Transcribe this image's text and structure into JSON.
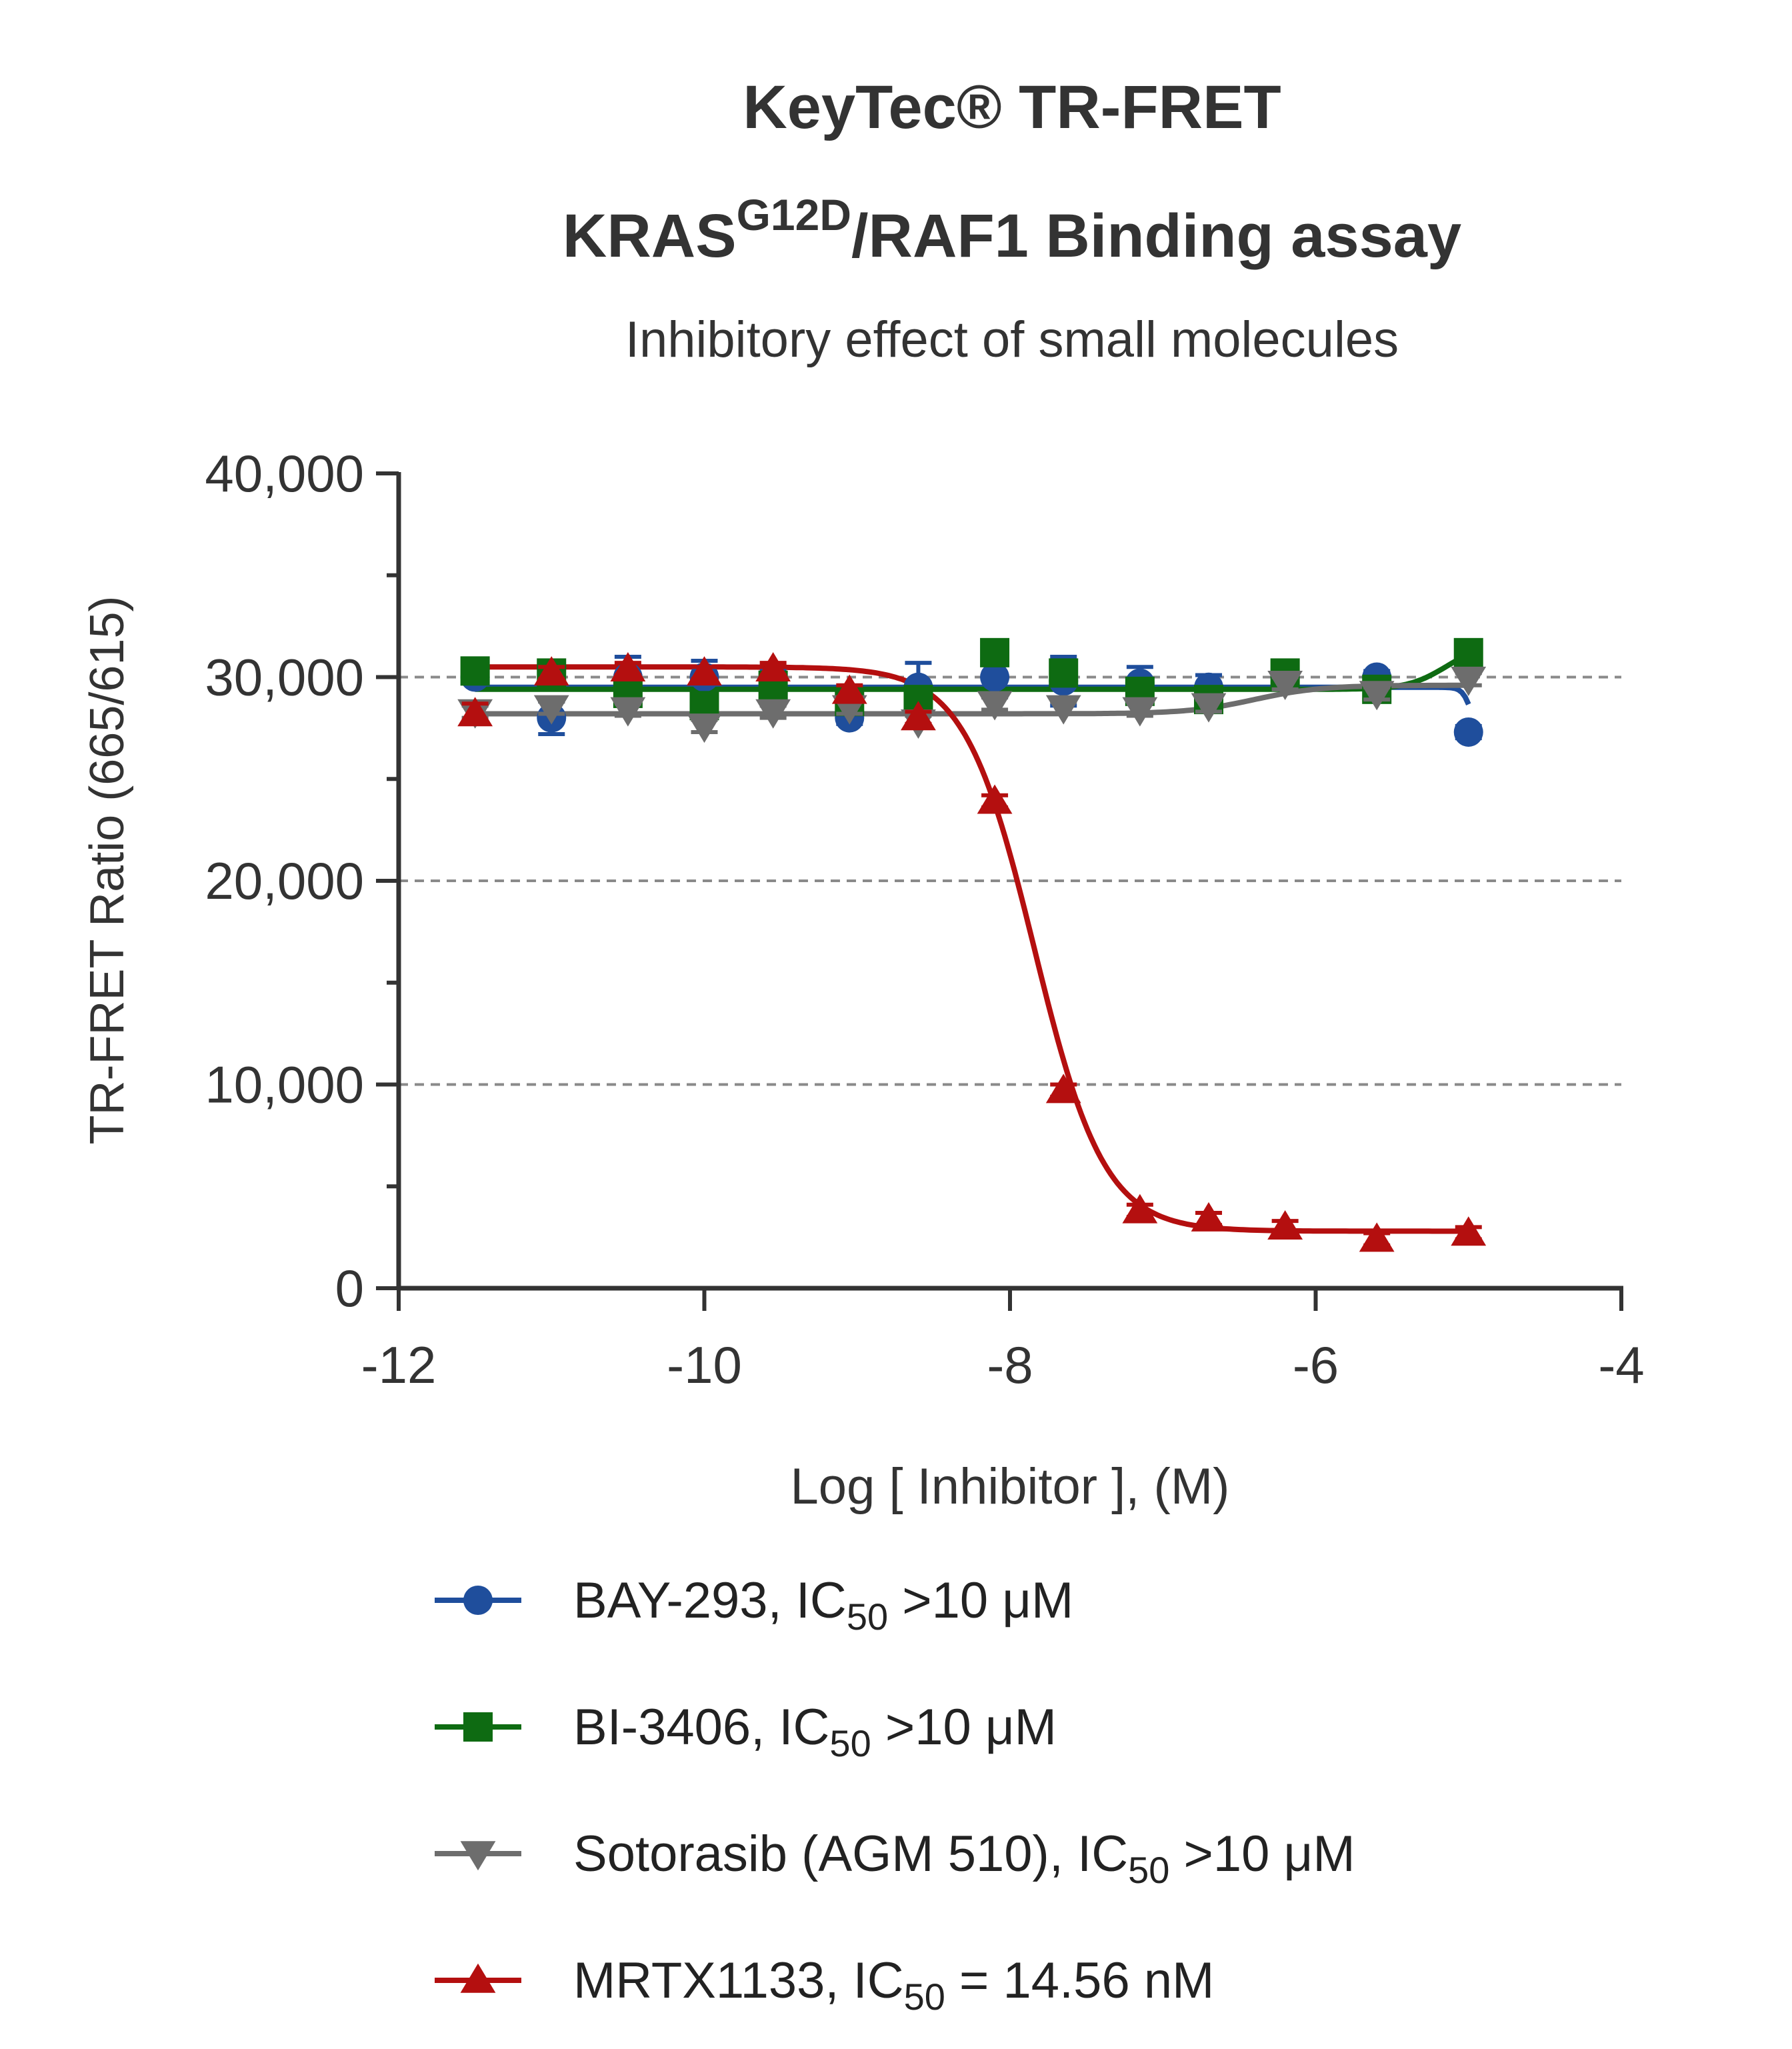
{
  "chart_data": {
    "type": "line",
    "title_line1": "KeyTec® TR-FRET",
    "title_line2_main": "KRAS",
    "title_line2_sup": "G12D",
    "title_line2_rest": "/RAF1 Binding assay",
    "subtitle": "Inhibitory effect of small molecules",
    "xlabel": "Log [ Inhibitor ], (M)",
    "ylabel": "TR-FRET Ratio (665/615)",
    "xlim": [
      -12,
      -4
    ],
    "ylim": [
      0,
      40000
    ],
    "x_ticks": [
      -12,
      -10,
      -8,
      -6,
      -4
    ],
    "x_tick_labels": [
      "-12",
      "-10",
      "-8",
      "-6",
      "-4"
    ],
    "y_ticks": [
      0,
      10000,
      20000,
      30000,
      40000
    ],
    "y_tick_labels": [
      "0",
      "10,000",
      "20,000",
      "30,000",
      "40,000"
    ],
    "gridlines_y": [
      10000,
      20000,
      30000
    ],
    "legend_position": "bottom",
    "series": [
      {
        "name": "BAY-293",
        "ic50_prefix": "IC",
        "ic50_sub": "50",
        "ic50_value": ">10 μM",
        "color": "#1f4e9c",
        "marker": "circle",
        "x": [
          -11.5,
          -11.0,
          -10.5,
          -10.0,
          -9.55,
          -9.05,
          -8.6,
          -8.1,
          -7.65,
          -7.15,
          -6.7,
          -6.2,
          -5.6,
          -5.0
        ],
        "y": [
          30000,
          28000,
          30000,
          30000,
          29500,
          28000,
          29500,
          30000,
          29800,
          29700,
          29500,
          30000,
          30000,
          27300
        ],
        "err": [
          300,
          800,
          1000,
          800,
          800,
          300,
          1200,
          1000,
          1200,
          800,
          600,
          500,
          300,
          300
        ]
      },
      {
        "name": "BI-3406",
        "ic50_prefix": "IC",
        "ic50_sub": "50",
        "ic50_value": ">10 μM",
        "color": "#0e6b12",
        "marker": "square",
        "x": [
          -11.5,
          -11.0,
          -10.5,
          -10.0,
          -9.55,
          -9.05,
          -8.6,
          -8.1,
          -7.65,
          -7.15,
          -6.7,
          -6.2,
          -5.6,
          -5.0
        ],
        "y": [
          30300,
          30200,
          29200,
          28600,
          29600,
          28800,
          28900,
          31200,
          30200,
          29300,
          28900,
          30200,
          29400,
          31200
        ],
        "err": [
          300,
          300,
          400,
          400,
          400,
          400,
          500,
          400,
          500,
          500,
          600,
          400,
          400,
          300
        ]
      },
      {
        "name": "Sotorasib (AGM 510)",
        "ic50_prefix": "IC",
        "ic50_sub": "50",
        "ic50_value": ">10 μM",
        "color": "#6d6d6d",
        "marker": "triangle-down",
        "x": [
          -11.5,
          -11.0,
          -10.5,
          -10.0,
          -9.55,
          -9.05,
          -8.6,
          -8.1,
          -7.65,
          -7.15,
          -6.7,
          -6.2,
          -5.6,
          -5.0
        ],
        "y": [
          28300,
          28500,
          28400,
          27600,
          28300,
          28500,
          27800,
          28700,
          28500,
          28400,
          28600,
          29700,
          29200,
          29900
        ],
        "err": [
          300,
          300,
          300,
          300,
          300,
          300,
          300,
          300,
          300,
          300,
          300,
          300,
          300,
          300
        ]
      },
      {
        "name": "MRTX1133",
        "ic50_prefix": "IC",
        "ic50_sub": "50",
        "ic50_value": "= 14.56 nM",
        "color": "#b40f0f",
        "marker": "triangle-up",
        "x": [
          -11.5,
          -11.0,
          -10.5,
          -10.0,
          -9.55,
          -9.05,
          -8.6,
          -8.1,
          -7.65,
          -7.15,
          -6.7,
          -6.2,
          -5.6,
          -5.0
        ],
        "y": [
          28200,
          30200,
          30400,
          30200,
          30400,
          29300,
          28000,
          23900,
          9700,
          3800,
          3400,
          3000,
          2400,
          2700
        ],
        "err": [
          500,
          300,
          300,
          300,
          300,
          300,
          300,
          300,
          300,
          300,
          300,
          300,
          300,
          300
        ]
      }
    ],
    "fits": {
      "BAY-293": {
        "top": 29500,
        "bottom": 27000,
        "logic50": -4.98,
        "hill": 15
      },
      "BI-3406": {
        "top": 29400,
        "bottom": 31600,
        "logic50": -5.15,
        "hill": 3.5
      },
      "Sotorasib (AGM 510)": {
        "top": 28200,
        "bottom": 29600,
        "logic50": -6.4,
        "hill": 2
      },
      "MRTX1133": {
        "top": 30500,
        "bottom": 2800,
        "logic50": -7.84,
        "hill": 1.9
      }
    }
  }
}
